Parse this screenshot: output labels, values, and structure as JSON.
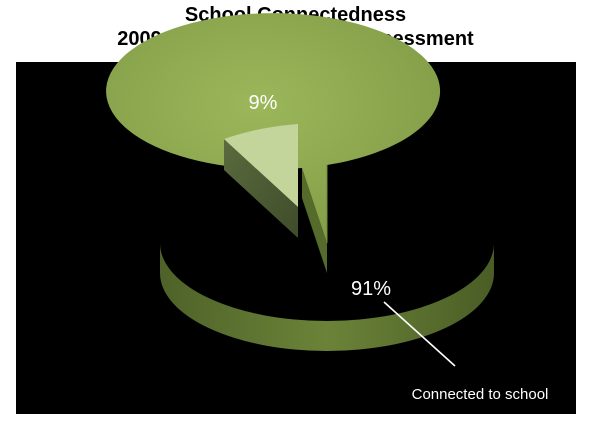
{
  "chart_data": {
    "type": "pie",
    "title_lines": [
      "School Connectedness",
      "2009 Dane County Youth Assessment"
    ],
    "slices": [
      {
        "label": "Connected to school",
        "value": 91,
        "data_label": "91%",
        "color": "#8aa34e"
      },
      {
        "label": "",
        "value": 9,
        "data_label": "9%",
        "color": "#c3d59a",
        "exploded": true
      }
    ],
    "style": {
      "three_d": true,
      "background": "#000000",
      "data_label_color": "#ffffff"
    }
  }
}
